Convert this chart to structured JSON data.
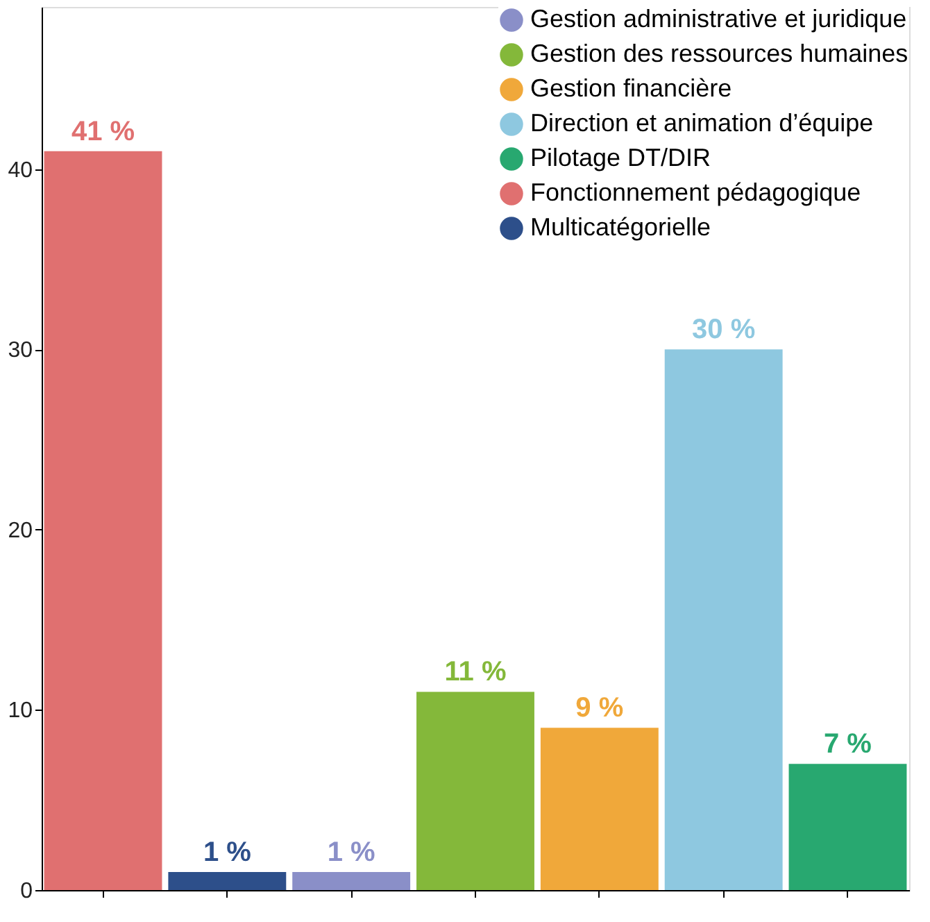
{
  "chart_data": {
    "type": "bar",
    "categories": [
      null,
      null,
      null,
      null,
      null,
      null,
      null
    ],
    "series": [
      {
        "name": "Gestion administrative et juridique",
        "color": "#8a8fc8",
        "values": [
          null,
          null,
          1,
          null,
          null,
          null,
          null
        ],
        "value_labels": [
          null,
          null,
          "1 %",
          null,
          null,
          null,
          null
        ]
      },
      {
        "name": "Gestion des ressources humaines",
        "color": "#84b83a",
        "values": [
          null,
          null,
          null,
          11,
          null,
          null,
          null
        ],
        "value_labels": [
          null,
          null,
          null,
          "11 %",
          null,
          null,
          null
        ]
      },
      {
        "name": "Gestion financière",
        "color": "#f0a83a",
        "values": [
          null,
          null,
          null,
          null,
          9,
          null,
          null
        ],
        "value_labels": [
          null,
          null,
          null,
          null,
          "9 %",
          null,
          null
        ]
      },
      {
        "name": "Direction et animation d’équipe",
        "color": "#8ec8e0",
        "values": [
          null,
          null,
          null,
          null,
          null,
          30,
          null
        ],
        "value_labels": [
          null,
          null,
          null,
          null,
          null,
          "30 %",
          null
        ]
      },
      {
        "name": "Pilotage DT/DIR",
        "color": "#28a870",
        "values": [
          null,
          null,
          null,
          null,
          null,
          null,
          7
        ],
        "value_labels": [
          null,
          null,
          null,
          null,
          null,
          null,
          "7 %"
        ]
      },
      {
        "name": "Fonctionnement pédagogique",
        "color": "#e07070",
        "values": [
          41,
          null,
          null,
          null,
          null,
          null,
          null
        ],
        "value_labels": [
          "41 %",
          null,
          null,
          null,
          null,
          null,
          null
        ]
      },
      {
        "name": "Multicatégorielle",
        "color": "#2d4f8a",
        "values": [
          null,
          1,
          null,
          null,
          null,
          null,
          null
        ],
        "value_labels": [
          null,
          "1 %",
          null,
          null,
          null,
          null,
          null
        ]
      }
    ],
    "ylim": [
      0,
      49
    ],
    "yticks": [
      0,
      10,
      20,
      30,
      40
    ],
    "grid": false,
    "legend": "top right",
    "tick_labels": "y",
    "marker": "circle"
  }
}
